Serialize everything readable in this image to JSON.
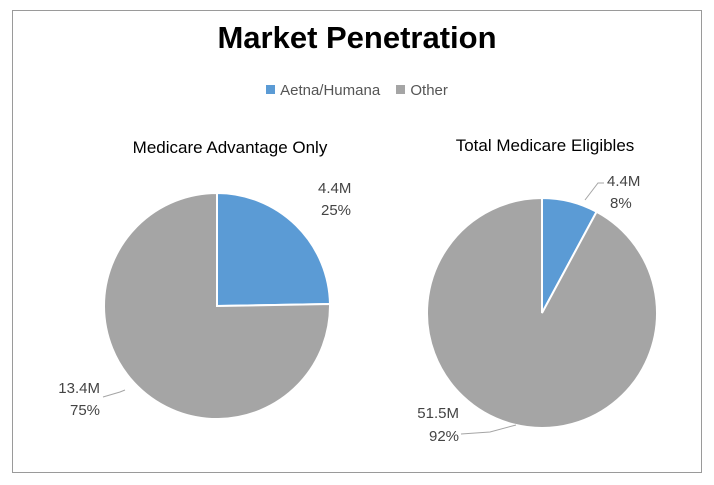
{
  "chart_data": {
    "type": "pie",
    "title": "Market Penetration",
    "legend": [
      {
        "label": "Aetna/Humana",
        "color": "#5b9bd5"
      },
      {
        "label": "Other",
        "color": "#a5a5a5"
      }
    ],
    "legend_position": "top",
    "charts": [
      {
        "subtitle": "Medicare Advantage Only",
        "slices": [
          {
            "label": "Aetna/Humana",
            "value": 4.4,
            "value_text": "4.4M",
            "percent_text": "25%"
          },
          {
            "label": "Other",
            "value": 13.4,
            "value_text": "13.4M",
            "percent_text": "75%"
          }
        ]
      },
      {
        "subtitle": "Total Medicare Eligibles",
        "slices": [
          {
            "label": "Aetna/Humana",
            "value": 4.4,
            "value_text": "4.4M",
            "percent_text": "8%"
          },
          {
            "label": "Other",
            "value": 51.5,
            "value_text": "51.5M",
            "percent_text": "92%"
          }
        ]
      }
    ]
  }
}
